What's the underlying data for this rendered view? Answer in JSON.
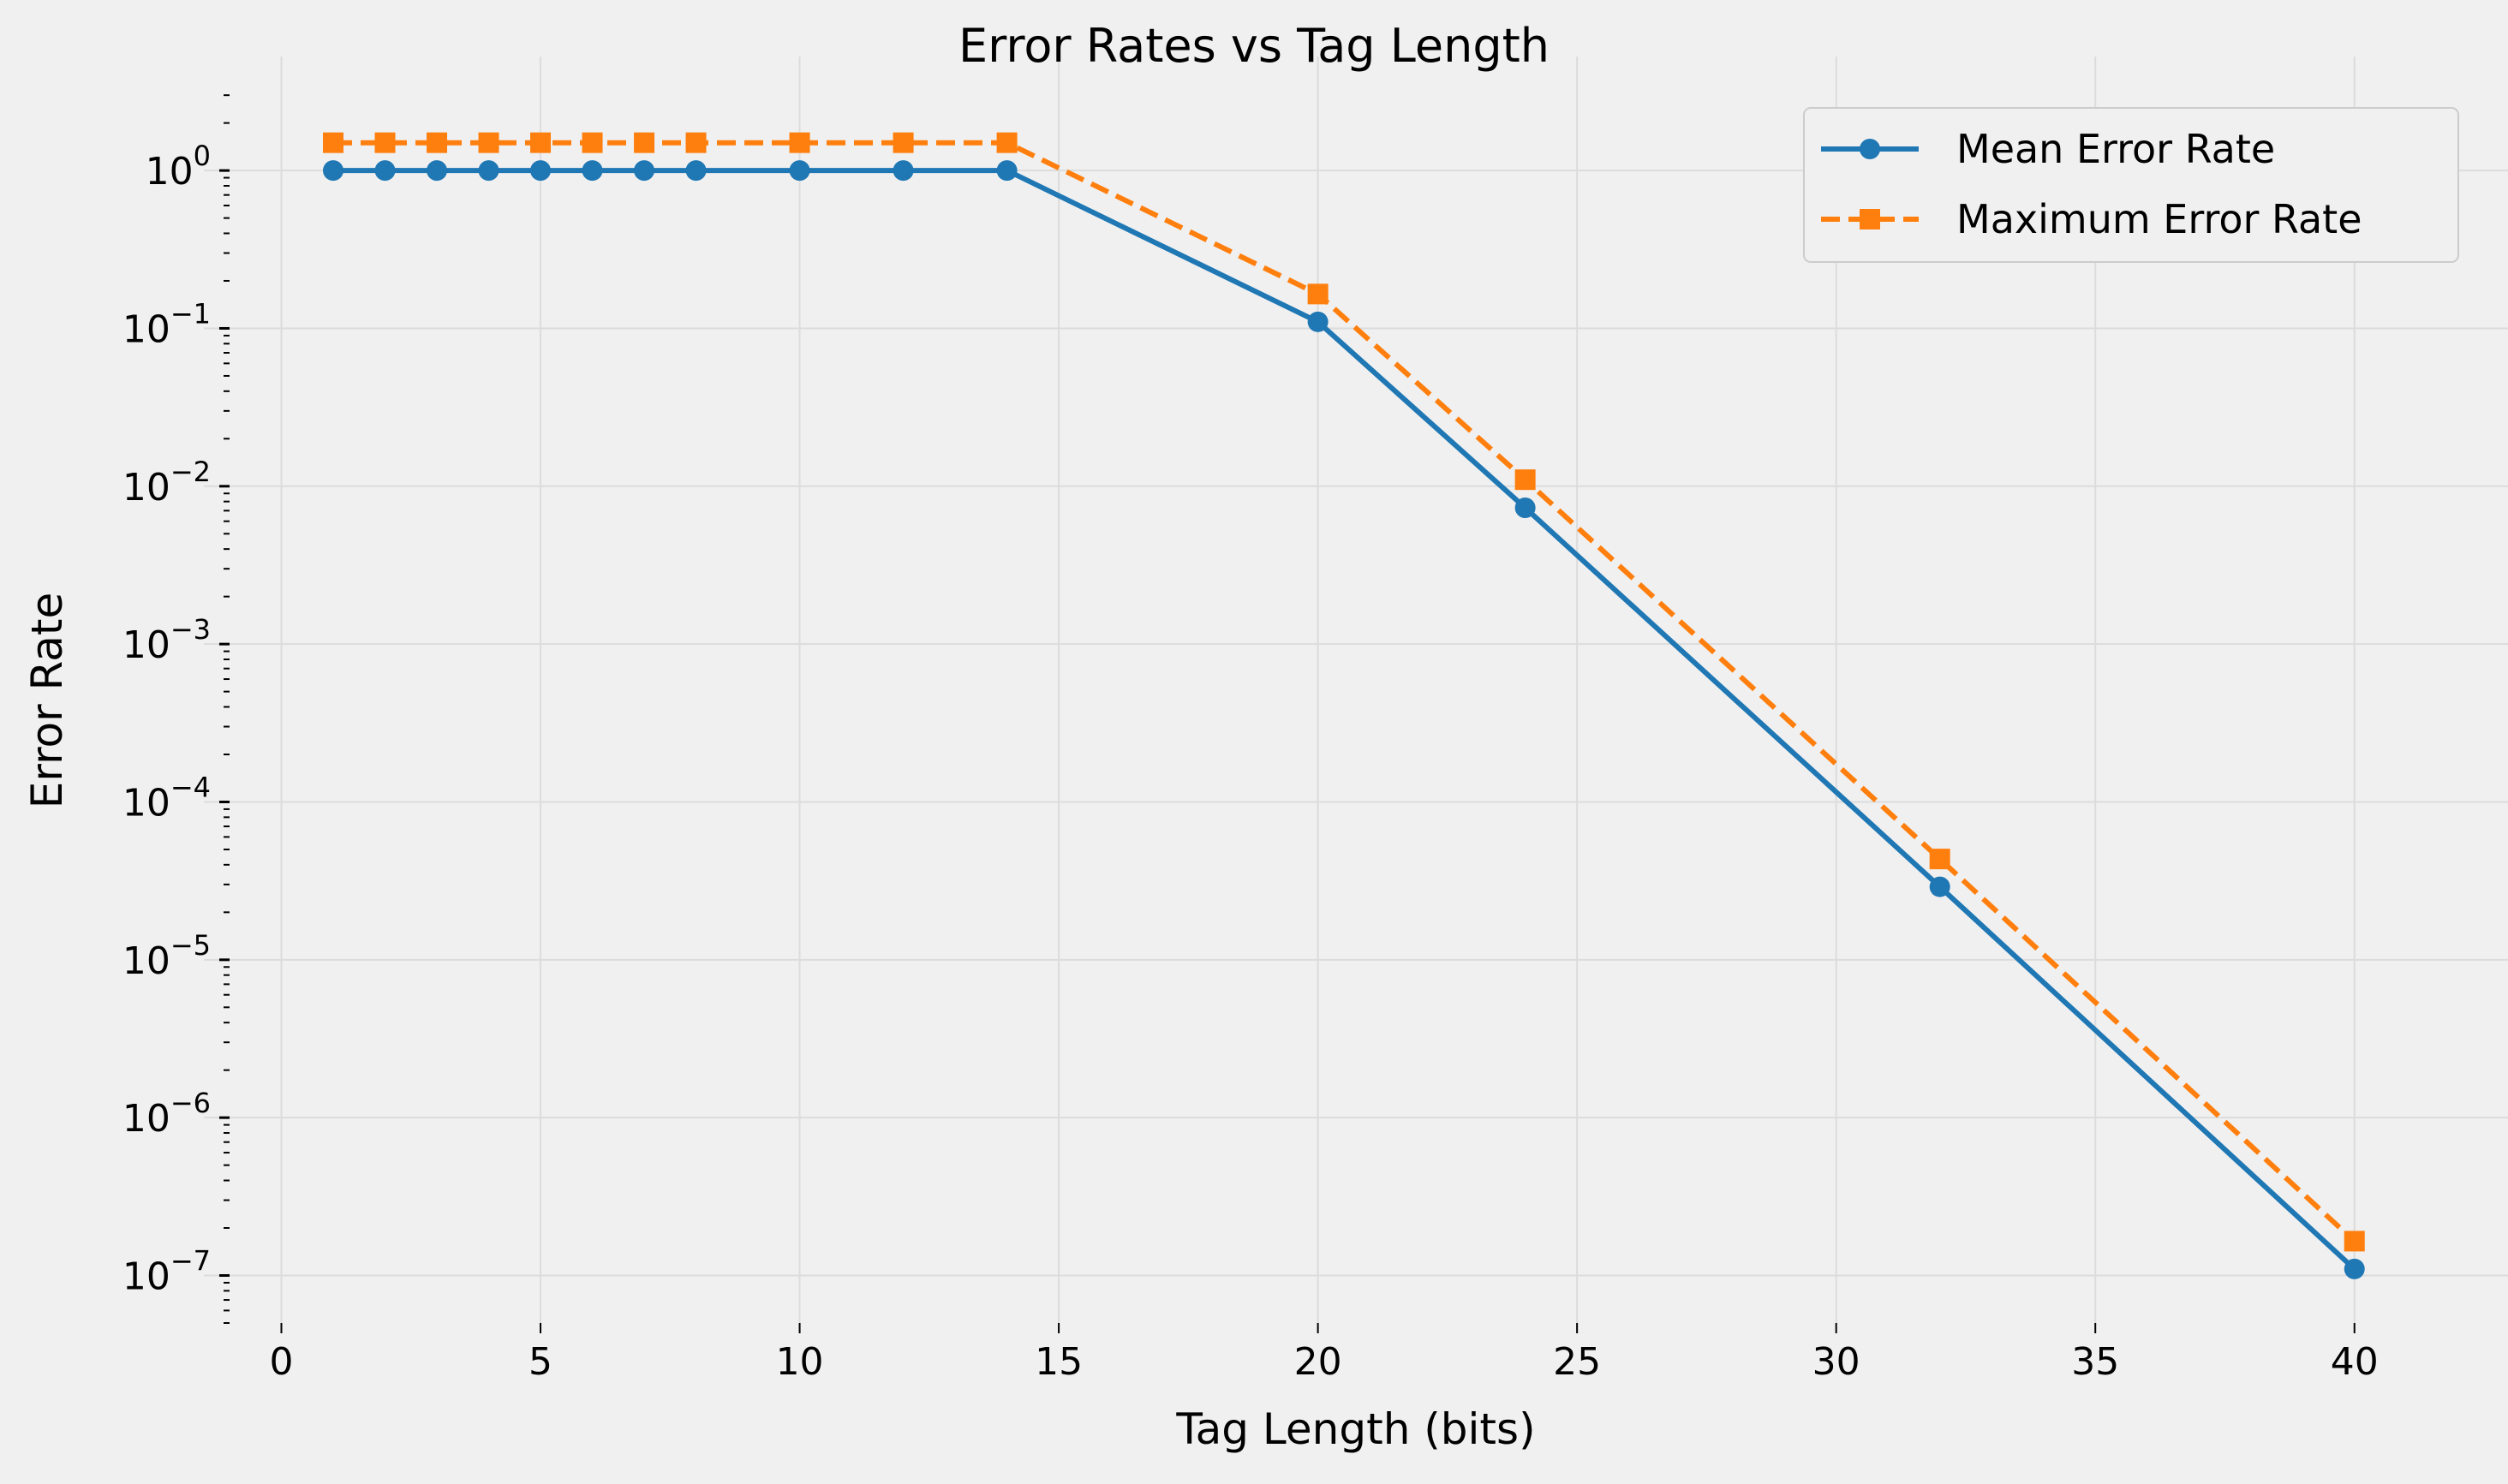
{
  "chart_data": {
    "type": "line",
    "title": "Error Rates vs Tag Length",
    "xlabel": "Tag Length (bits)",
    "ylabel": "Error Rate",
    "xlim": [
      -1,
      42.5
    ],
    "ylim": [
      5e-08,
      3.2
    ],
    "yscale": "log",
    "grid": true,
    "legend_position": "top-right",
    "x": [
      1,
      2,
      3,
      4,
      5,
      6,
      7,
      8,
      10,
      12,
      14,
      20,
      24,
      32,
      40
    ],
    "x_ticks": [
      "0",
      "5",
      "10",
      "15",
      "20",
      "25",
      "30",
      "35",
      "40"
    ],
    "y_ticks": [
      {
        "base": "10",
        "exp": "0"
      },
      {
        "base": "10",
        "exp": "−1"
      },
      {
        "base": "10",
        "exp": "−2"
      },
      {
        "base": "10",
        "exp": "−3"
      },
      {
        "base": "10",
        "exp": "−4"
      },
      {
        "base": "10",
        "exp": "−5"
      },
      {
        "base": "10",
        "exp": "−6"
      },
      {
        "base": "10",
        "exp": "−7"
      }
    ],
    "series": [
      {
        "name": "Mean Error Rate",
        "color": "#1f77b4",
        "line_style": "solid",
        "marker": "circle",
        "values": [
          1,
          1,
          1,
          1,
          1,
          1,
          1,
          1,
          1,
          1,
          1,
          0.11,
          0.0073,
          2.9e-05,
          1.1e-07
        ]
      },
      {
        "name": "Maximum Error Rate",
        "color": "#ff7f0e",
        "line_style": "dashed",
        "marker": "square",
        "values": [
          1.5,
          1.5,
          1.5,
          1.5,
          1.5,
          1.5,
          1.5,
          1.5,
          1.5,
          1.5,
          1.5,
          0.165,
          0.011,
          4.35e-05,
          1.65e-07
        ]
      }
    ]
  }
}
